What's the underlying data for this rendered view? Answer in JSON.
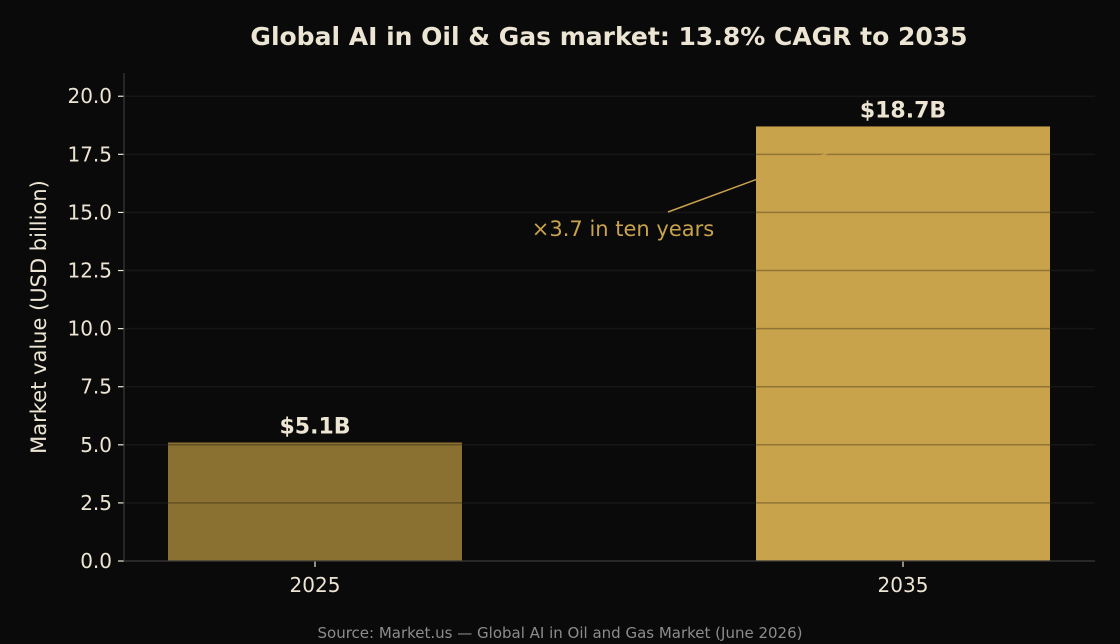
{
  "colors": {
    "background": "#0a0a0a",
    "grid": "#1f1f1f",
    "axis": "#3a3a3a",
    "text": "#ede5d3",
    "source_text": "#8c8c8c",
    "annotation": "#c9a24d",
    "bar_2025": "#8a7031",
    "bar_2035": "#c9a24c"
  },
  "chart_data": {
    "type": "bar",
    "title": "Global AI in Oil & Gas market: 13.8% CAGR to 2035",
    "xlabel": "",
    "ylabel": "Market value (USD billion)",
    "categories": [
      "2025",
      "2035"
    ],
    "values": [
      5.1,
      18.7
    ],
    "data_labels": [
      "$5.1B",
      "$18.7B"
    ],
    "ylim": [
      0,
      21
    ],
    "yticks": [
      0.0,
      2.5,
      5.0,
      7.5,
      10.0,
      12.5,
      15.0,
      17.5,
      20.0
    ],
    "ytick_labels": [
      "0.0",
      "2.5",
      "5.0",
      "7.5",
      "10.0",
      "12.5",
      "15.0",
      "17.5",
      "20.0"
    ],
    "grid": true,
    "legend": "none",
    "annotations": [
      {
        "text": "×3.7 in ten years",
        "target_category": "2035",
        "target_value": 18.7
      }
    ],
    "source": "Source: Market.us — Global AI in Oil and Gas Market (June 2026)"
  }
}
